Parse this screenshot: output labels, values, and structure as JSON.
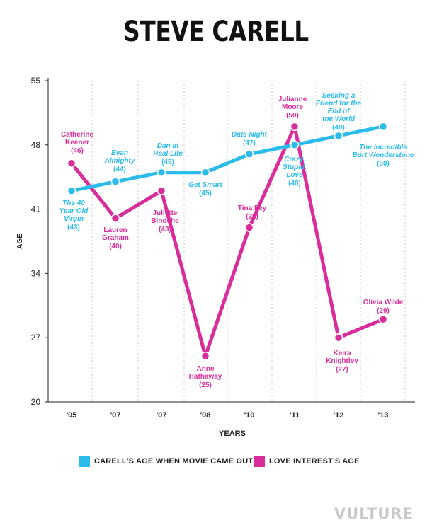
{
  "chart_data": {
    "type": "line",
    "title": "STEVE CARELL",
    "xlabel": "YEARS",
    "ylabel": "AGE",
    "ylim": [
      20,
      55
    ],
    "yticks": [
      20,
      27,
      34,
      41,
      48,
      55
    ],
    "categories": [
      "'05",
      "'07",
      "'07",
      "'08",
      "'10",
      "'11",
      "'12",
      "'13"
    ],
    "grid": "vertical-dotted",
    "series": [
      {
        "name": "CARELL'S AGE WHEN MOVIE CAME OUT",
        "color": "#2bbcec",
        "values": [
          43,
          44,
          45,
          45,
          47,
          48,
          49,
          50
        ],
        "labels": [
          {
            "text": [
              "The 40",
              "Year Old",
              "Virgin"
            ],
            "value": "(43)"
          },
          {
            "text": [
              "Evan",
              "Almighty"
            ],
            "value": "(44)"
          },
          {
            "text": [
              "Dan in",
              "Real Life"
            ],
            "value": "(45)"
          },
          {
            "text": [
              "Get Smart"
            ],
            "value": "(45)"
          },
          {
            "text": [
              "Date Night"
            ],
            "value": "(47)"
          },
          {
            "text": [
              "Crazy.",
              "Stupid.",
              "Love"
            ],
            "value": "(48)"
          },
          {
            "text": [
              "Seeking a",
              "Friend for the",
              "End of",
              "the World"
            ],
            "value": "(49)"
          },
          {
            "text": [
              "The Incredible",
              "Burt Wonderstone"
            ],
            "value": "(50)"
          }
        ]
      },
      {
        "name": "LOVE INTEREST'S AGE",
        "color": "#d82d9a",
        "values": [
          46,
          40,
          43,
          25,
          39,
          50,
          27,
          29
        ],
        "labels": [
          {
            "text": [
              "Catherine",
              "Keener"
            ],
            "value": "(46)"
          },
          {
            "text": [
              "Lauren",
              "Graham"
            ],
            "value": "(40)"
          },
          {
            "text": [
              "Juliette",
              "Binoche"
            ],
            "value": "(43)"
          },
          {
            "text": [
              "Anne",
              "Hathaway"
            ],
            "value": "(25)"
          },
          {
            "text": [
              "Tina Fey"
            ],
            "value": "(39)"
          },
          {
            "text": [
              "Julianne",
              "Moore"
            ],
            "value": "(50)"
          },
          {
            "text": [
              "Keira",
              "Knightley"
            ],
            "value": "(27)"
          },
          {
            "text": [
              "Olivia Wilde"
            ],
            "value": "(29)"
          }
        ]
      }
    ]
  },
  "legend": {
    "carell": "CARELL'S AGE WHEN MOVIE CAME OUT",
    "love": "LOVE INTEREST'S AGE"
  },
  "watermark": "VULTURE"
}
